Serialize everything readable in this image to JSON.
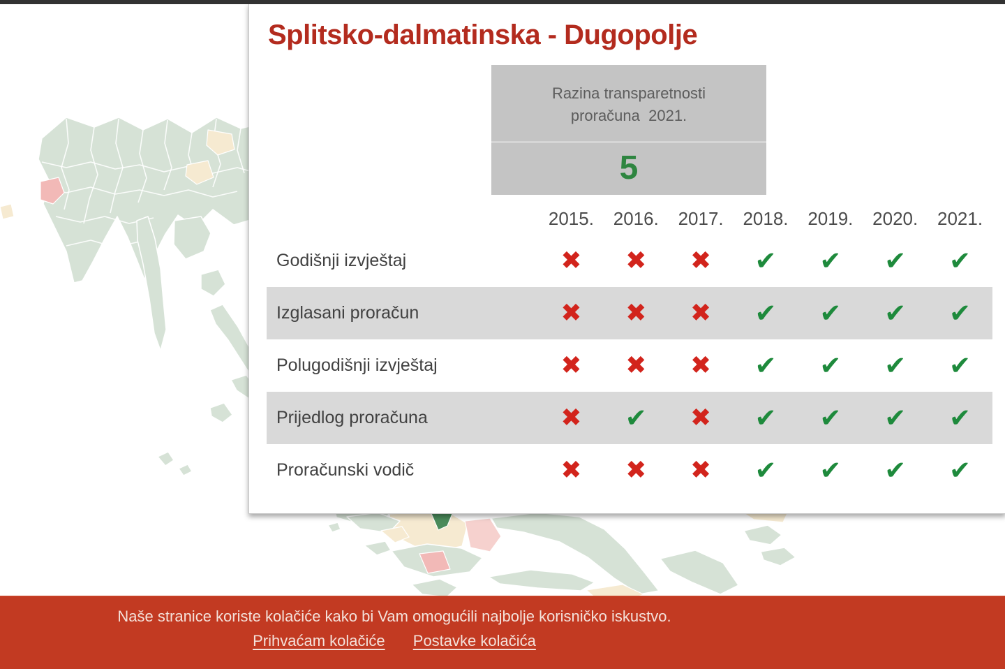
{
  "card": {
    "title": "Splitsko-dalmatinska - Dugopolje",
    "score_box": {
      "label_line1": "Razina transparetnosti",
      "label_line2": "proračuna  2021.",
      "value": "5"
    },
    "table": {
      "years": [
        "2015.",
        "2016.",
        "2017.",
        "2018.",
        "2019.",
        "2020.",
        "2021."
      ],
      "rows": [
        {
          "label": "Godišnji izvještaj",
          "values": [
            "no",
            "no",
            "no",
            "yes",
            "yes",
            "yes",
            "yes"
          ]
        },
        {
          "label": "Izglasani proračun",
          "values": [
            "no",
            "no",
            "no",
            "yes",
            "yes",
            "yes",
            "yes"
          ]
        },
        {
          "label": "Polugodišnji izvještaj",
          "values": [
            "no",
            "no",
            "no",
            "yes",
            "yes",
            "yes",
            "yes"
          ]
        },
        {
          "label": "Prijedlog proračuna",
          "values": [
            "no",
            "yes",
            "no",
            "yes",
            "yes",
            "yes",
            "yes"
          ]
        },
        {
          "label": "Proračunski vodič",
          "values": [
            "no",
            "no",
            "no",
            "yes",
            "yes",
            "yes",
            "yes"
          ]
        }
      ]
    }
  },
  "cookie_banner": {
    "message": "Naše stranice koriste kolačiće kako bi Vam omogućili najbolje korisničko iskustvo.",
    "accept_label": "Prihvaćam kolačiće",
    "settings_label": "Postavke kolačića"
  },
  "icons": {
    "check_glyph": "✔",
    "cross_glyph": "✖"
  },
  "colors": {
    "title_red": "#b32b1e",
    "banner_red": "#c23a22",
    "cross_red": "#d2241c",
    "check_green": "#1e8a3c",
    "score_green": "#2e8540",
    "map_land": "#ccdccd",
    "map_cream": "#f5e6c6",
    "map_pink": "#f4c6c2",
    "map_pink_strong": "#f0a8a6",
    "map_selected": "#1d6f33"
  }
}
